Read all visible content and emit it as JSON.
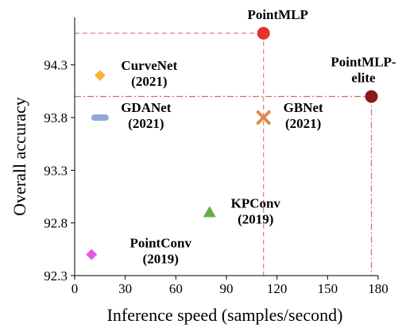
{
  "chart_data": {
    "type": "scatter",
    "xlabel": "Inference speed (samples/second)",
    "ylabel": "Overall accuracy",
    "xlim": [
      0,
      180
    ],
    "ylim": [
      92.3,
      94.75
    ],
    "xticks": [
      "0",
      "30",
      "60",
      "90",
      "120",
      "150",
      "180"
    ],
    "yticks": [
      "92.3",
      "92.8",
      "93.3",
      "93.8",
      "94.3"
    ],
    "grid": false,
    "points": [
      {
        "name": "PointMLP",
        "label_lines": [
          "PointMLP"
        ],
        "x": 112,
        "y": 94.6,
        "marker": "circle",
        "color": "#e8322b"
      },
      {
        "name": "PointMLP-elite",
        "label_lines": [
          "PointMLP-",
          "elite"
        ],
        "x": 176,
        "y": 94.0,
        "marker": "circle",
        "color": "#8b1a1a"
      },
      {
        "name": "CurveNet",
        "label_lines": [
          "CurveNet",
          "(2021)"
        ],
        "x": 15,
        "y": 94.2,
        "marker": "diamond",
        "color": "#f4b63c"
      },
      {
        "name": "GDANet",
        "label_lines": [
          "GDANet",
          "(2021)"
        ],
        "x": 15,
        "y": 93.8,
        "marker": "bar",
        "color": "#8fa8d8"
      },
      {
        "name": "GBNet",
        "label_lines": [
          "GBNet",
          "(2021)"
        ],
        "x": 112,
        "y": 93.8,
        "marker": "x",
        "color": "#e08a4c"
      },
      {
        "name": "KPConv",
        "label_lines": [
          "KPConv",
          "(2019)"
        ],
        "x": 80,
        "y": 92.9,
        "marker": "triangle",
        "color": "#6aaa4a"
      },
      {
        "name": "PointConv",
        "label_lines": [
          "PointConv",
          "(2019)"
        ],
        "x": 10,
        "y": 92.5,
        "marker": "diamond",
        "color": "#e45ae8"
      }
    ]
  }
}
